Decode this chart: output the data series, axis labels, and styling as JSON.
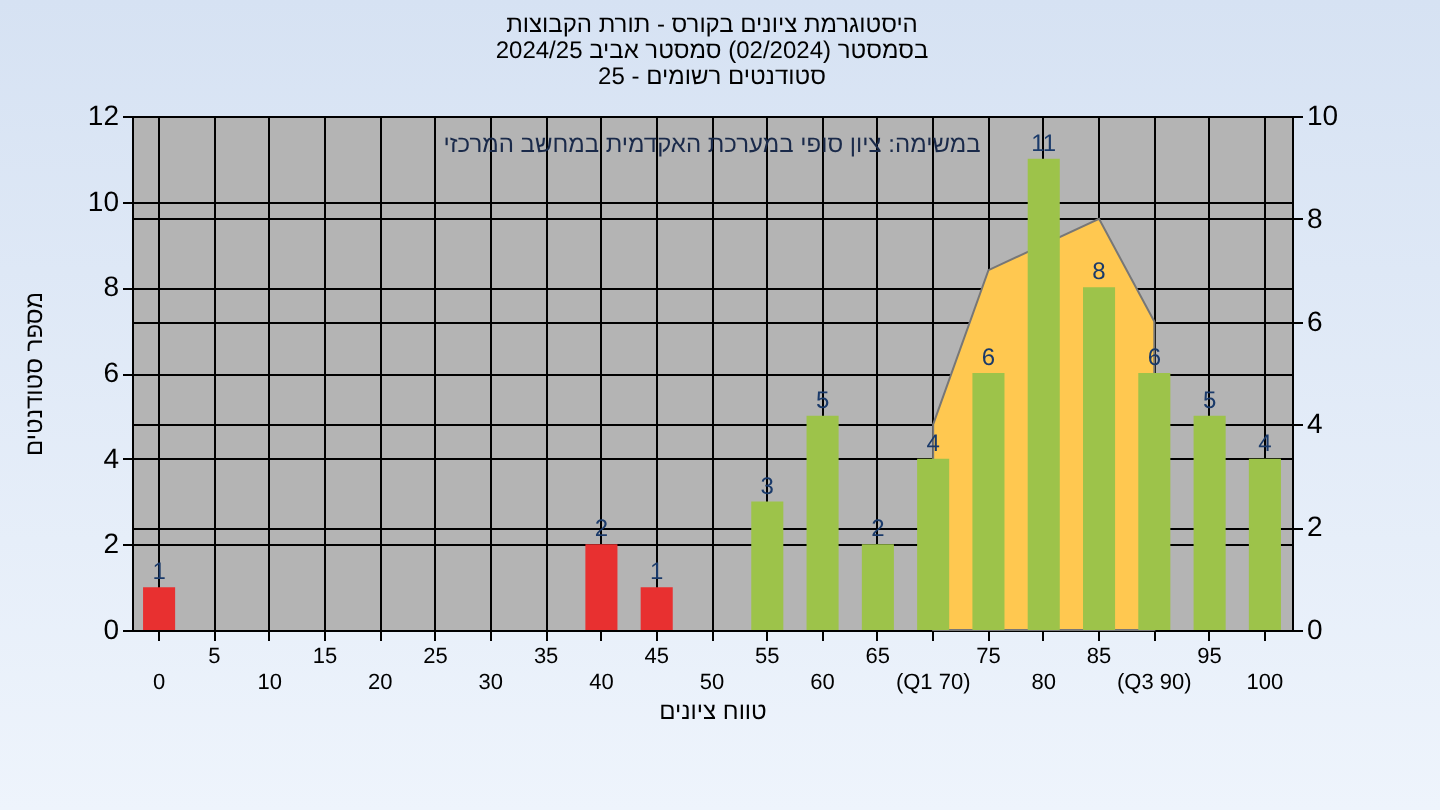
{
  "chart_data": {
    "type": "bar",
    "title": "היסטוגרמת ציונים בקורס - תורת הקבוצות\nבסמסטר (02/2024) סמסטר אביב 2024/25\nסטודנטים רשומים - 25",
    "xlabel": "טווח ציונים",
    "ylabel": "מספר סטודנטים",
    "annotations": [
      "במשימה: ציון סופי במערכת האקדמית במחשב המרכזי"
    ],
    "categories": [
      "0",
      "5",
      "10",
      "15",
      "20",
      "25",
      "30",
      "35",
      "40",
      "45",
      "50",
      "55",
      "60",
      "65",
      "(Q1 70)",
      "75",
      "80",
      "85",
      "(Q3 90)",
      "95",
      "100"
    ],
    "series": [
      {
        "type": "area",
        "axis": "y2",
        "color": "#ffc850",
        "values": [
          null,
          null,
          null,
          null,
          null,
          null,
          null,
          null,
          null,
          null,
          null,
          null,
          null,
          null,
          4,
          7,
          null,
          8,
          6,
          null,
          null
        ]
      },
      {
        "colors": [
          "#e83030",
          null,
          null,
          null,
          null,
          null,
          null,
          null,
          "#e83030",
          "#e83030",
          null,
          "#9dc34a",
          "#9dc34a",
          "#9dc34a",
          "#9dc34a",
          "#9dc34a",
          "#9dc34a",
          "#9dc34a",
          "#9dc34a",
          "#9dc34a",
          "#9dc34a"
        ],
        "values": [
          1,
          null,
          null,
          null,
          null,
          null,
          null,
          null,
          2,
          1,
          null,
          3,
          5,
          2,
          4,
          6,
          11,
          8,
          6,
          5,
          4
        ],
        "value_labels": [
          "1",
          null,
          null,
          null,
          null,
          null,
          null,
          null,
          "2",
          "1",
          null,
          "3",
          "5",
          "2",
          "4",
          "6",
          "11",
          "8",
          "6",
          "5",
          "4"
        ]
      }
    ],
    "ylim": [
      0,
      12
    ],
    "yticks": [
      0,
      2,
      4,
      6,
      8,
      10,
      12
    ],
    "y2lim": [
      0,
      10
    ],
    "y2ticks": [
      0,
      2,
      4,
      6,
      8,
      10
    ],
    "grid": true
  }
}
